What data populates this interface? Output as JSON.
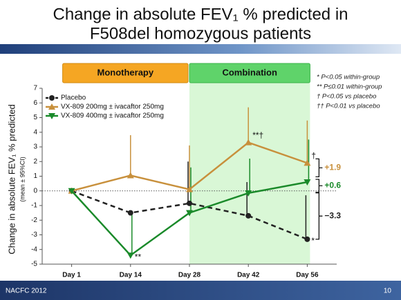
{
  "title_lines": [
    "Change in absolute FEV₁ % predicted in",
    "F508del homozygous patients"
  ],
  "footer": {
    "left": "NACFC 2012",
    "right": "10"
  },
  "footnotes": [
    "* P<0.05 within-group",
    "** P≤0.01 within-group",
    "† P<0.05 vs placebo",
    "†† P<0.01 vs placebo"
  ],
  "chart_data": {
    "type": "line",
    "y_label": "Change in absolute FEV₁ % predicted",
    "y_sublabel": "(mean ± 95%CI)",
    "phases": [
      {
        "label": "Monotherapy",
        "color": "#f5a623"
      },
      {
        "label": "Combination",
        "color": "#5fd36a"
      }
    ],
    "categories": [
      "Day 1",
      "Day 14",
      "Day 28",
      "Day 42",
      "Day 56"
    ],
    "ylim": [
      -5,
      7
    ],
    "yticks": [
      -5,
      -4,
      -3,
      -2,
      -1,
      0,
      1,
      2,
      3,
      4,
      5,
      6,
      7
    ],
    "series": [
      {
        "name": "Placebo",
        "color": "#222222",
        "marker": "circle",
        "dashed": true,
        "values": [
          0,
          -1.5,
          -0.85,
          -1.7,
          -3.3
        ],
        "errors": [
          null,
          null,
          2.85,
          2.3,
          3.0
        ],
        "point_labels": [
          null,
          null,
          null,
          null,
          "*"
        ],
        "end_label": "−3.3"
      },
      {
        "name": "VX-809 200mg ± ivacaftor 250mg",
        "color": "#c8903c",
        "marker": "triangle-up",
        "dashed": false,
        "values": [
          0,
          1.05,
          0.1,
          3.3,
          1.9
        ],
        "errors": [
          null,
          2.75,
          3.0,
          2.4,
          2.9
        ],
        "point_labels": [
          null,
          null,
          null,
          "**†",
          "†"
        ],
        "end_label": "+1.9"
      },
      {
        "name": "VX-809 400mg ± ivacaftor 250mg",
        "color": "#1a8a2a",
        "marker": "triangle-down",
        "dashed": false,
        "values": [
          0,
          -4.4,
          -1.5,
          -0.15,
          0.6
        ],
        "errors": [
          null,
          2.8,
          3.1,
          2.35,
          2.9
        ],
        "point_labels": [
          null,
          "**",
          null,
          null,
          null
        ],
        "end_label": "+0.6"
      }
    ]
  }
}
